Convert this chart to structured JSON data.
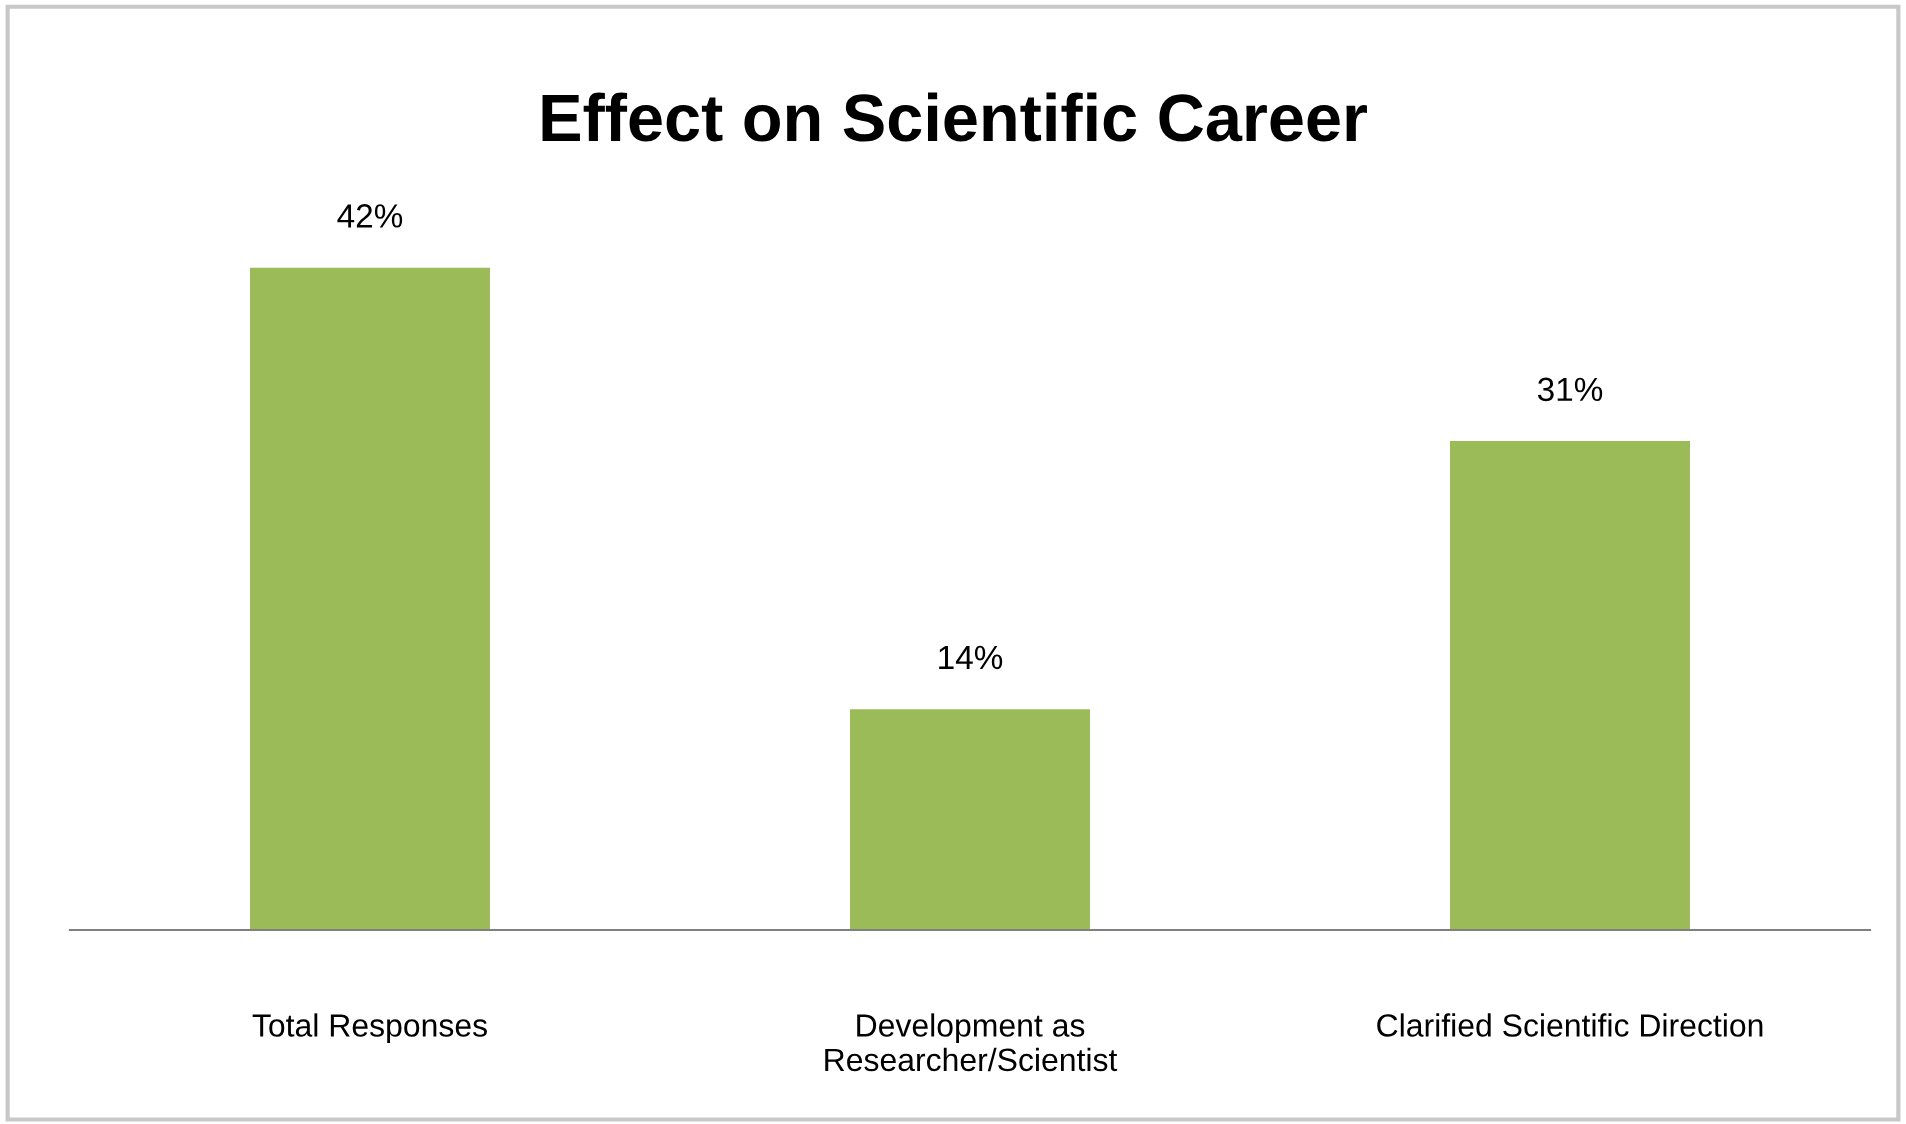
{
  "chart_data": {
    "type": "bar",
    "title": "Effect on Scientific Career",
    "categories": [
      "Total Responses",
      "Development as\nResearcher/Scientist",
      "Clarified Scientific Direction"
    ],
    "values": [
      42,
      14,
      31
    ],
    "color": "#9bbb59",
    "value_labels": [
      "42%",
      "14%",
      "31%"
    ]
  }
}
